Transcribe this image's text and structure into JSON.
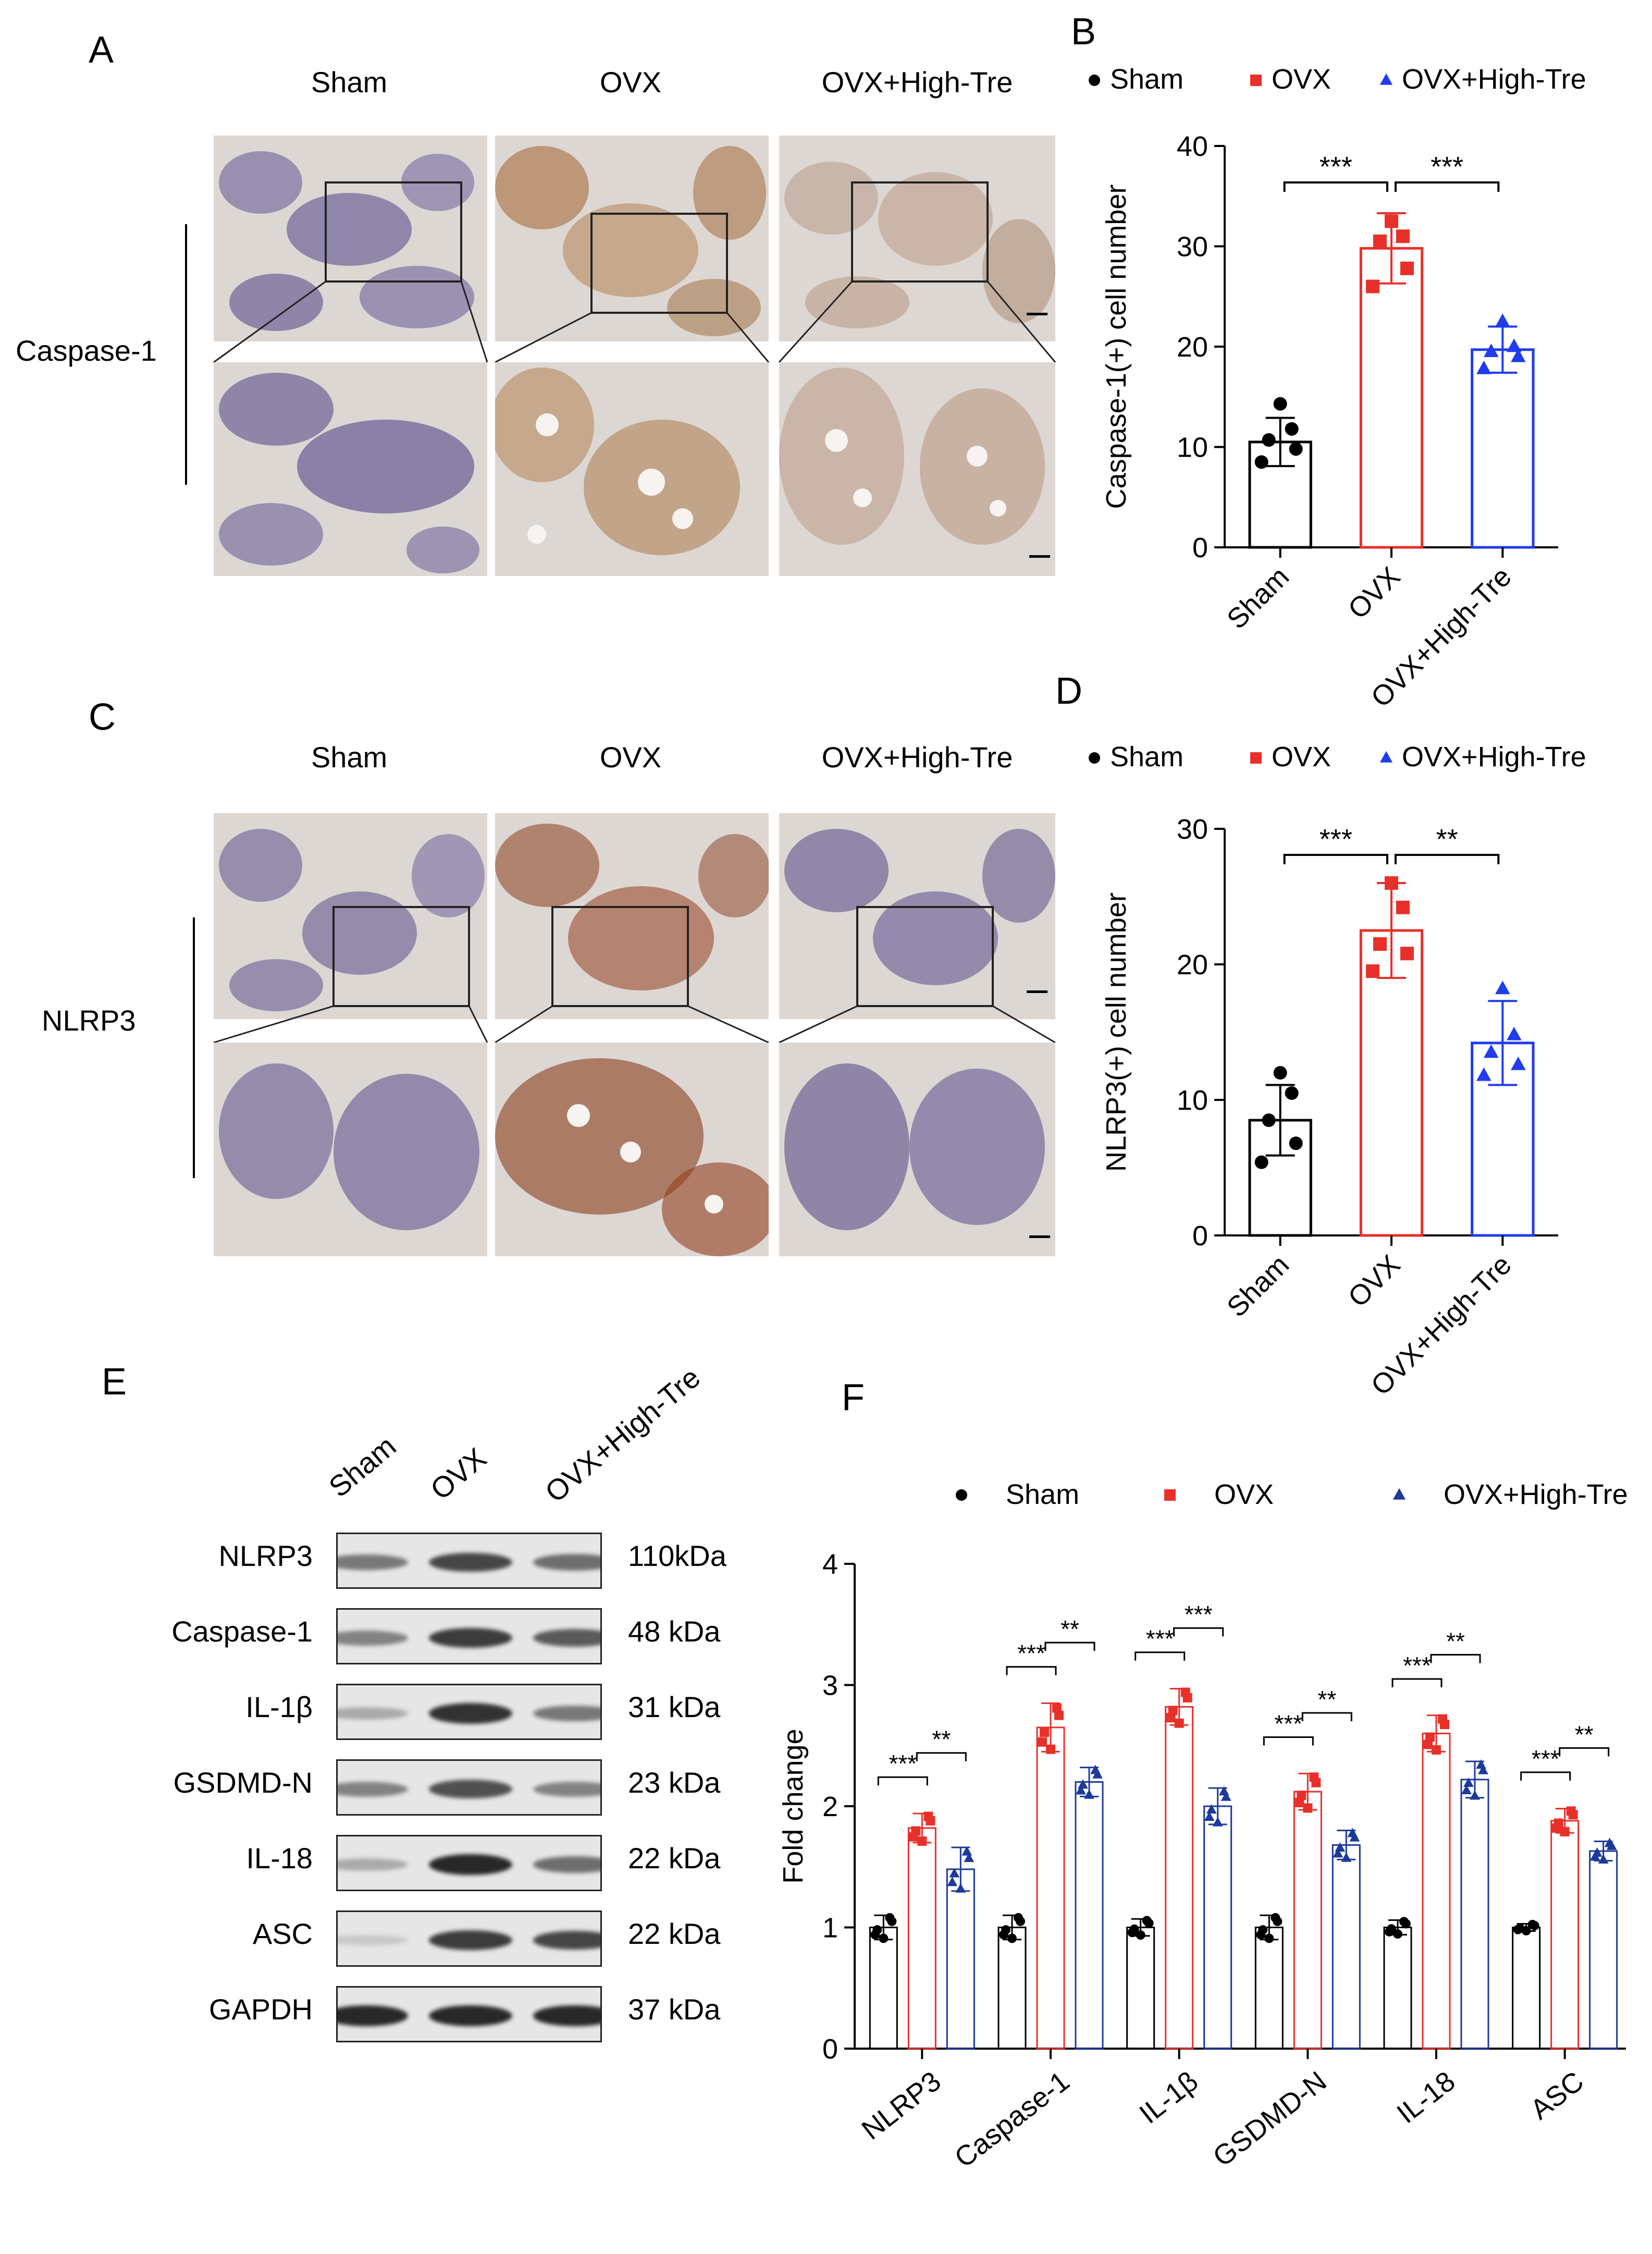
{
  "panels": {
    "A": "A",
    "B": "B",
    "C": "C",
    "D": "D",
    "E": "E",
    "F": "F"
  },
  "micrographs": {
    "groups": [
      "Sham",
      "OVX",
      "OVX+High-Tre"
    ],
    "row_labels": {
      "A": "Caspase-1",
      "C": "NLRP3"
    },
    "colors": {
      "stain_brown": "#a0622d",
      "hematoxylin": "#4a4a8a",
      "bone": "#ddd7d3",
      "marrow": "#c9b8c7",
      "fat": "#f6f3f1",
      "inset": "#222222"
    }
  },
  "western": {
    "lanes": [
      "Sham",
      "OVX",
      "OVX+High-Tre"
    ],
    "bands": [
      {
        "label": "NLRP3",
        "kda": "110kDa",
        "intensity": [
          0.55,
          0.8,
          0.6
        ]
      },
      {
        "label": "Caspase-1",
        "kda": "48 kDa",
        "intensity": [
          0.5,
          0.85,
          0.7
        ]
      },
      {
        "label": "IL-1β",
        "kda": "31 kDa",
        "intensity": [
          0.3,
          0.9,
          0.55
        ]
      },
      {
        "label": "GSDMD-N",
        "kda": "23 kDa",
        "intensity": [
          0.5,
          0.75,
          0.5
        ]
      },
      {
        "label": "IL-18",
        "kda": "22 kDa",
        "intensity": [
          0.3,
          0.95,
          0.6
        ]
      },
      {
        "label": "ASC",
        "kda": "22 kDa",
        "intensity": [
          0.15,
          0.85,
          0.8
        ]
      },
      {
        "label": "GAPDH",
        "kda": "37 kDa",
        "intensity": [
          0.95,
          0.95,
          0.95
        ]
      }
    ]
  },
  "chart_data": [
    {
      "type": "bar",
      "panel": "B",
      "categories": [
        "Sham",
        "OVX",
        "OVX+High-Tre"
      ],
      "values": [
        10.5,
        29.8,
        19.7
      ],
      "errors": [
        2.4,
        3.5,
        2.3
      ],
      "points": [
        [
          8.5,
          9.8,
          10.7,
          11.8,
          14.3
        ],
        [
          26.0,
          27.8,
          30.5,
          31.0,
          32.5
        ],
        [
          17.8,
          19.0,
          19.5,
          20.0,
          22.5
        ]
      ],
      "ylabel": "Caspase-1(+) cell number",
      "ylim": [
        0,
        40
      ],
      "yticks": [
        0,
        10,
        20,
        30,
        40
      ],
      "legend": [
        "Sham",
        "OVX",
        "OVX+High-Tre"
      ],
      "legend_placement": "top",
      "significance": [
        {
          "pair": [
            0,
            1
          ],
          "label": "***"
        },
        {
          "pair": [
            1,
            2
          ],
          "label": "***"
        }
      ],
      "colors": [
        "#000000",
        "#e8302a",
        "#1f3cf0"
      ]
    },
    {
      "type": "bar",
      "panel": "D",
      "categories": [
        "Sham",
        "OVX",
        "OVX+High-Tre"
      ],
      "values": [
        8.5,
        22.5,
        14.2
      ],
      "errors": [
        2.6,
        3.5,
        3.1
      ],
      "points": [
        [
          5.4,
          6.8,
          8.5,
          10.5,
          12.0
        ],
        [
          19.5,
          20.8,
          21.5,
          24.2,
          26.0
        ],
        [
          11.8,
          12.6,
          13.5,
          14.8,
          18.2
        ]
      ],
      "ylabel": "NLRP3(+) cell number",
      "ylim": [
        0,
        30
      ],
      "yticks": [
        0,
        10,
        20,
        30
      ],
      "legend": [
        "Sham",
        "OVX",
        "OVX+High-Tre"
      ],
      "legend_placement": "top",
      "significance": [
        {
          "pair": [
            0,
            1
          ],
          "label": "***"
        },
        {
          "pair": [
            1,
            2
          ],
          "label": "**"
        }
      ],
      "colors": [
        "#000000",
        "#e8302a",
        "#1f3cf0"
      ]
    },
    {
      "type": "bar",
      "panel": "F",
      "categories": [
        "NLRP3",
        "Caspase-1",
        "IL-1β",
        "GSDMD-N",
        "IL-18",
        "ASC"
      ],
      "ylabel": "Fold change",
      "ylim": [
        0,
        4
      ],
      "yticks": [
        0,
        1,
        2,
        3,
        4
      ],
      "legend_placement": "top",
      "series": [
        {
          "name": "Sham",
          "values": [
            1.0,
            1.0,
            1.0,
            1.0,
            1.0,
            1.0
          ],
          "errors": [
            0.1,
            0.1,
            0.07,
            0.1,
            0.06,
            0.03
          ]
        },
        {
          "name": "OVX",
          "values": [
            1.82,
            2.65,
            2.82,
            2.12,
            2.6,
            1.88
          ],
          "errors": [
            0.12,
            0.2,
            0.15,
            0.15,
            0.15,
            0.1
          ]
        },
        {
          "name": "OVX+High-Tre",
          "values": [
            1.48,
            2.2,
            2.0,
            1.68,
            2.22,
            1.63
          ],
          "errors": [
            0.18,
            0.12,
            0.15,
            0.12,
            0.15,
            0.08
          ]
        }
      ],
      "significance": [
        {
          "category": 0,
          "pair": [
            0,
            1
          ],
          "label": "***"
        },
        {
          "category": 0,
          "pair": [
            1,
            2
          ],
          "label": "**"
        },
        {
          "category": 1,
          "pair": [
            0,
            1
          ],
          "label": "***"
        },
        {
          "category": 1,
          "pair": [
            1,
            2
          ],
          "label": "**"
        },
        {
          "category": 2,
          "pair": [
            0,
            1
          ],
          "label": "***"
        },
        {
          "category": 2,
          "pair": [
            1,
            2
          ],
          "label": "***"
        },
        {
          "category": 3,
          "pair": [
            0,
            1
          ],
          "label": "***"
        },
        {
          "category": 3,
          "pair": [
            1,
            2
          ],
          "label": "**"
        },
        {
          "category": 4,
          "pair": [
            0,
            1
          ],
          "label": "***"
        },
        {
          "category": 4,
          "pair": [
            1,
            2
          ],
          "label": "**"
        },
        {
          "category": 5,
          "pair": [
            0,
            1
          ],
          "label": "***"
        },
        {
          "category": 5,
          "pair": [
            1,
            2
          ],
          "label": "**"
        }
      ],
      "colors": [
        "#000000",
        "#e8302a",
        "#1c3a9a"
      ]
    }
  ]
}
